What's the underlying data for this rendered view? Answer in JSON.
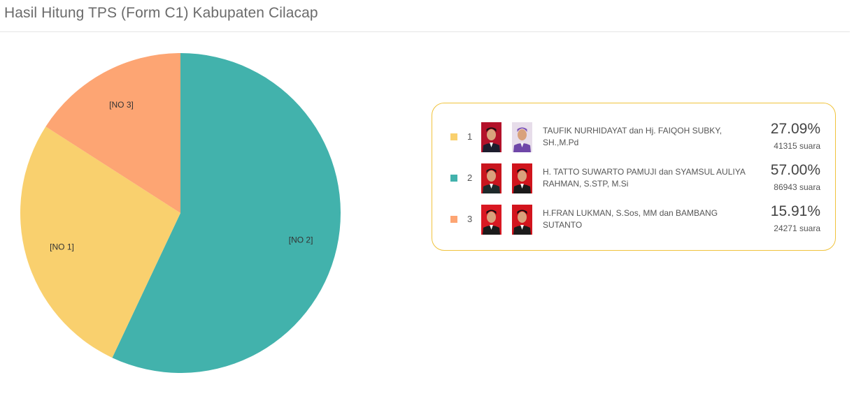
{
  "header": {
    "title": "Hasil Hitung TPS (Form C1) Kabupaten Cilacap"
  },
  "chart_data": {
    "type": "pie",
    "title": "Hasil Hitung TPS (Form C1) Kabupaten Cilacap",
    "categories": [
      "[NO 1]",
      "[NO 2]",
      "[NO 3]"
    ],
    "values": [
      41315,
      86943,
      24271
    ],
    "percentages": [
      27.09,
      57.0,
      15.91
    ],
    "colors": [
      "#f9d06e",
      "#42b2ac",
      "#fda573"
    ],
    "slice_order": [
      "[NO 2]",
      "[NO 1]",
      "[NO 3]"
    ],
    "start_angle": "12 o'clock, clockwise",
    "legend": "right"
  },
  "legend": {
    "items": [
      {
        "number": "1",
        "name": "TAUFIK NURHIDAYAT dan Hj. FAIQOH SUBKY, SH.,M.Pd",
        "percent": "27.09%",
        "votes": "41315 suara",
        "color": "#f9d06e",
        "photo1": {
          "bg": "#b3112a",
          "suit": "#1d1d2e",
          "head": "#141414"
        },
        "photo2": {
          "bg": "#e7ddea",
          "suit": "#6f47a8",
          "head": "#7c52b6"
        }
      },
      {
        "number": "2",
        "name": "H. TATTO SUWARTO PAMUJI dan SYAMSUL AULIYA RAHMAN, S.STP, M.Si",
        "percent": "57.00%",
        "votes": "86943 suara",
        "color": "#42b2ac",
        "photo1": {
          "bg": "#c9151e",
          "suit": "#1e2a2b",
          "head": "#1a1a1a"
        },
        "photo2": {
          "bg": "#d0141c",
          "suit": "#1a1a1a",
          "head": "#111111"
        }
      },
      {
        "number": "3",
        "name": "H.FRAN LUKMAN, S.Sos, MM dan BAMBANG SUTANTO",
        "percent": "15.91%",
        "votes": "24271 suara",
        "color": "#fda573",
        "photo1": {
          "bg": "#d91822",
          "suit": "#1b1b1b",
          "head": "#111111"
        },
        "photo2": {
          "bg": "#d2141d",
          "suit": "#1b1b1b",
          "head": "#111111"
        }
      }
    ]
  }
}
